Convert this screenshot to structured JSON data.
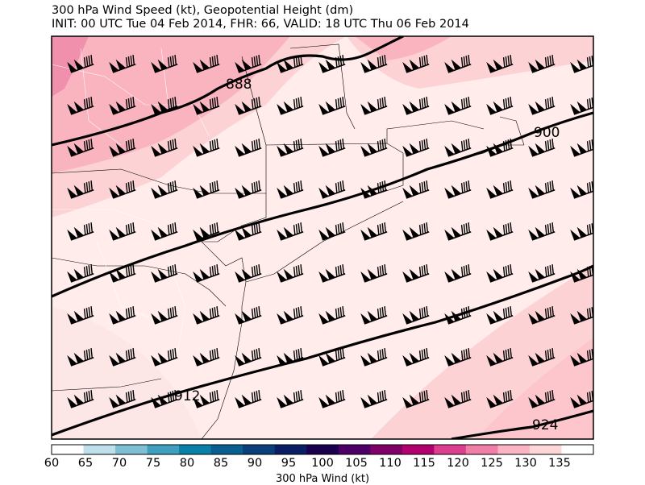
{
  "title_line1": "300 hPa Wind Speed (kt), Geopotential Height (dm)",
  "title_line2": "INIT: 00 UTC Tue 04 Feb 2014, FHR: 66, VALID: 18 UTC Thu 06 Feb 2014",
  "colorbar": {
    "label": "300 hPa Wind (kt)",
    "ticks": [
      "60",
      "65",
      "70",
      "75",
      "80",
      "85",
      "90",
      "95",
      "100",
      "105",
      "110",
      "115",
      "120",
      "125",
      "130",
      "135"
    ],
    "colors": [
      "#ffffff",
      "#bfe0ea",
      "#7fbfd4",
      "#3f9fbf",
      "#0a7fa8",
      "#0a5f91",
      "#0a3f7a",
      "#0a1f63",
      "#1a004c",
      "#4c0066",
      "#7f0066",
      "#b2006f",
      "#dd3f8f",
      "#f07fa8",
      "#fab4c4",
      "#fdd6d8",
      "#ffffff"
    ]
  },
  "height_contours": [
    {
      "label": "888"
    },
    {
      "label": "900"
    },
    {
      "label": "912"
    },
    {
      "label": "924"
    }
  ],
  "wind_field": {
    "barb_style": "50 kt pennant + flags",
    "direction": "westerly-southwesterly"
  }
}
